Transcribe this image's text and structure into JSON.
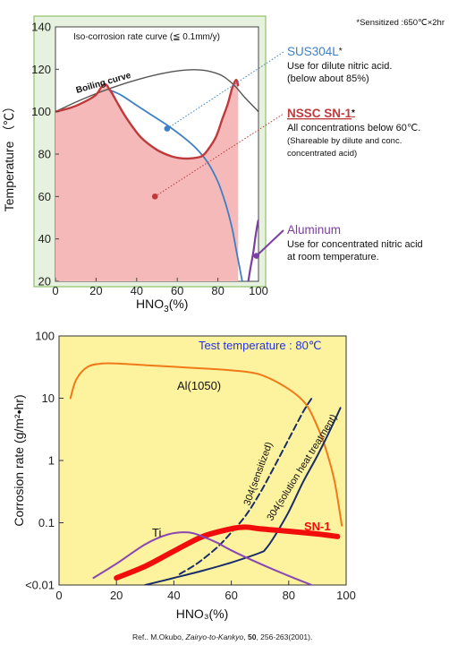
{
  "note": "*Sensitized :650℃×2hr",
  "reference": {
    "prefix": "Ref.. M.Okubo, ",
    "journal": "Zairyo-to-Kankyo",
    "sep": ", ",
    "volume": "50",
    "rest": ", 256-263(2001)."
  },
  "chart_data": [
    {
      "type": "area",
      "title": "Iso-corrosion rate curve (≦ 0.1mm/y)",
      "xlabel": "HNO",
      "xlabel_sub": "3",
      "xlabel_unit": "(%)",
      "ylabel": "Temperature （℃）",
      "xlim": [
        0,
        100
      ],
      "ylim": [
        20,
        140
      ],
      "x_ticks": [
        "0",
        "20",
        "40",
        "60",
        "80",
        "100"
      ],
      "y_ticks": [
        "20",
        "40",
        "60",
        "80",
        "100",
        "120",
        "140"
      ],
      "colors": {
        "background": "#e6f2df",
        "border": "#8fc06a",
        "nssc_fill": "#f6b9b9",
        "nssc_line": "#c0393b",
        "sus_line": "#3f7fc4",
        "aluminum_line": "#7b3fa2",
        "boiling_line": "#555555"
      },
      "boiling_curve": {
        "label": "Boiling curve",
        "x": [
          0,
          10,
          20,
          30,
          40,
          50,
          60,
          68,
          75,
          82,
          88,
          93,
          97,
          100
        ],
        "y": [
          100,
          104.5,
          108.5,
          112,
          115,
          117.5,
          119.2,
          119.8,
          119.2,
          117,
          112.5,
          107,
          103,
          100
        ]
      },
      "series": [
        {
          "name": "SUS304L",
          "x": [
            26,
            32,
            40,
            48,
            56,
            63,
            69,
            75,
            80,
            84,
            87,
            89,
            91,
            92
          ],
          "y": [
            110.5,
            108,
            103,
            98,
            93,
            88,
            83,
            76,
            67,
            56,
            45,
            35,
            25,
            20
          ]
        },
        {
          "name": "NSSC SN-1",
          "x": [
            0,
            8,
            15,
            20,
            24,
            27,
            30,
            35,
            42,
            50,
            57,
            62,
            67,
            72,
            75,
            79,
            82,
            85,
            87,
            89,
            90
          ],
          "y": [
            100,
            102,
            105,
            108,
            113,
            110,
            105,
            97,
            88,
            82,
            79,
            78,
            78,
            79,
            82,
            88,
            96,
            104,
            111,
            115,
            112
          ]
        },
        {
          "name": "Aluminum",
          "x": [
            95,
            96,
            97.5,
            98.5,
            99.5,
            100
          ],
          "y": [
            20,
            26,
            34,
            41,
            47,
            49
          ]
        }
      ],
      "annotations": [
        {
          "name": "SUS304L",
          "marker": "*",
          "x": 55,
          "y": 92,
          "lines": [
            "Use for dilute nitric acid.",
            "(below about 85%)"
          ]
        },
        {
          "name": "NSSC SN-1",
          "marker": "*",
          "x": 49,
          "y": 60,
          "lines": [
            "All concentrations below 60℃."
          ],
          "small_lines": [
            "(Shareable by dilute and conc.",
            " concentrated acid)"
          ]
        },
        {
          "name": "Aluminum",
          "marker": "",
          "x": 99,
          "y": 32,
          "lines": [
            "Use for concentrated nitric acid",
            "at room temperature."
          ]
        }
      ]
    },
    {
      "type": "line",
      "title": "Test temperature : 80℃",
      "xlabel": "HNO₃(%)",
      "ylabel": "Corrosion rate (g/m²•hr)",
      "xlim": [
        0,
        100
      ],
      "ylim": [
        0.01,
        100
      ],
      "log_y": true,
      "x_ticks": [
        "0",
        "20",
        "40",
        "60",
        "80",
        "100"
      ],
      "y_ticks": [
        "<0.01",
        "0.1",
        "1",
        "10",
        "100"
      ],
      "background": "#fdf29d",
      "series": [
        {
          "name": "Al(1050)",
          "color": "#f07a1a",
          "style": "solid",
          "x": [
            4,
            6,
            10,
            15,
            20,
            30,
            40,
            50,
            60,
            70,
            80,
            86,
            90,
            93,
            96,
            98.5
          ],
          "y": [
            10,
            20,
            32,
            36,
            36,
            34,
            32,
            30,
            28,
            24,
            14,
            8,
            3.5,
            1.5,
            0.45,
            0.09
          ]
        },
        {
          "name": "304(sensitized)",
          "color": "#1a2d6b",
          "style": "dashed",
          "x": [
            42,
            48,
            55,
            60,
            65,
            70,
            75,
            80,
            85,
            88
          ],
          "y": [
            0.015,
            0.022,
            0.04,
            0.07,
            0.13,
            0.3,
            0.8,
            2.2,
            6,
            10
          ]
        },
        {
          "name": "304(solution heat treatment)",
          "color": "#1a2d6b",
          "style": "solid",
          "x": [
            30,
            40,
            50,
            60,
            70,
            72,
            75,
            80,
            85,
            90,
            95,
            98
          ],
          "y": [
            0.01,
            0.013,
            0.017,
            0.023,
            0.033,
            0.038,
            0.06,
            0.15,
            0.45,
            1.2,
            3.5,
            7
          ]
        },
        {
          "name": "SN-1",
          "color": "#f20d0d",
          "style": "bold",
          "x": [
            20,
            30,
            40,
            50,
            60,
            65,
            70,
            80,
            90,
            97
          ],
          "y": [
            0.013,
            0.02,
            0.035,
            0.06,
            0.08,
            0.085,
            0.08,
            0.073,
            0.066,
            0.06
          ]
        },
        {
          "name": "Ti",
          "color": "#8a46b4",
          "style": "solid",
          "x": [
            12,
            20,
            30,
            38,
            45,
            50,
            55,
            60,
            70,
            80,
            88
          ],
          "y": [
            0.013,
            0.022,
            0.045,
            0.065,
            0.07,
            0.06,
            0.048,
            0.036,
            0.022,
            0.014,
            0.01
          ]
        }
      ]
    }
  ]
}
